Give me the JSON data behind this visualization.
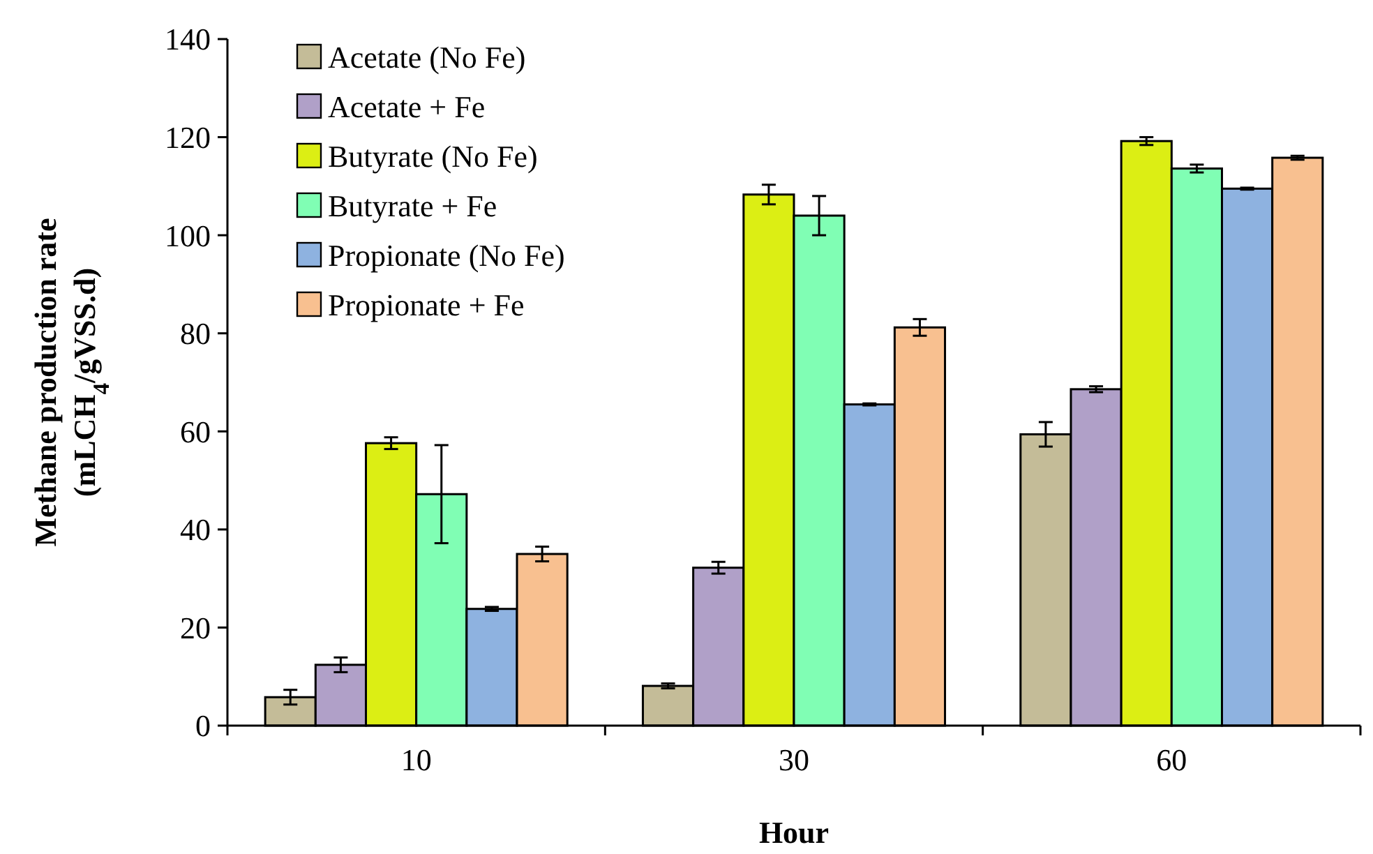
{
  "chart_data": {
    "type": "bar",
    "xlabel": "Hour",
    "ylabel": "Methane production rate\n(mLCH$_{4}$/gVSS.d)",
    "categories": [
      "10",
      "30",
      "60"
    ],
    "series": [
      {
        "name": "Acetate (No Fe)",
        "color": "#c4bc98",
        "values": [
          5.8,
          8.1,
          59.4
        ],
        "errors": [
          1.5,
          0.5,
          2.5
        ]
      },
      {
        "name": "Acetate + Fe",
        "color": "#b0a0c8",
        "values": [
          12.4,
          32.2,
          68.6
        ],
        "errors": [
          1.5,
          1.2,
          0.6
        ]
      },
      {
        "name": "Butyrate (No Fe)",
        "color": "#dcee14",
        "values": [
          57.6,
          108.3,
          119.2
        ],
        "errors": [
          1.2,
          2,
          0.8
        ]
      },
      {
        "name": "Butyrate + Fe",
        "color": "#80feb4",
        "values": [
          47.2,
          104,
          113.6
        ],
        "errors": [
          10,
          4,
          0.8
        ]
      },
      {
        "name": "Propionate (No Fe)",
        "color": "#8eb2e0",
        "values": [
          23.8,
          65.5,
          109.5
        ],
        "errors": [
          0.4,
          0.2,
          0.2
        ]
      },
      {
        "name": "Propionate + Fe",
        "color": "#f8c090",
        "values": [
          35,
          81.2,
          115.8
        ],
        "errors": [
          1.5,
          1.7,
          0.4
        ]
      }
    ],
    "ylim": [
      0,
      140
    ],
    "yticks": [
      0,
      20,
      40,
      60,
      80,
      100,
      120,
      140
    ],
    "grid": false,
    "legend": "top left"
  }
}
